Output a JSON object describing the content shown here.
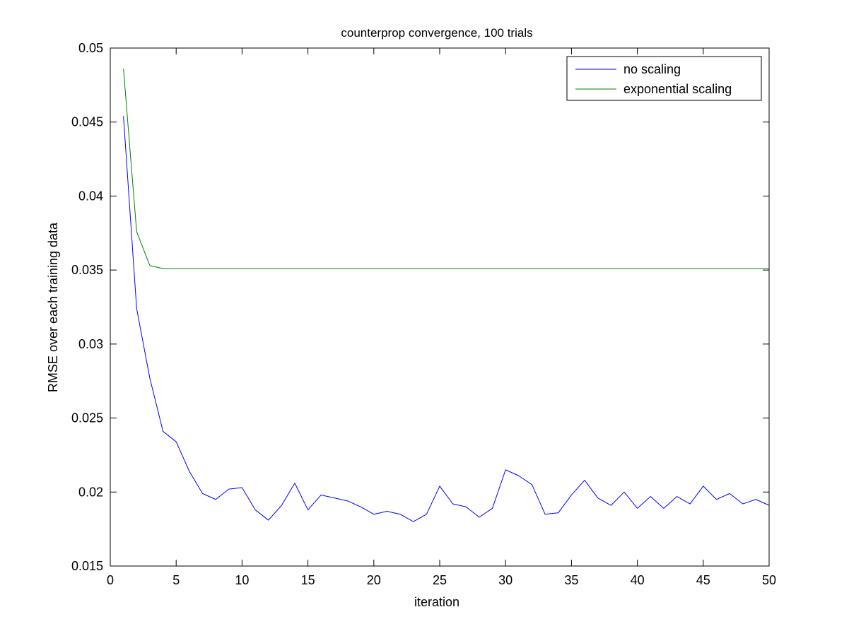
{
  "chart_data": {
    "type": "line",
    "title": "counterprop convergence, 100 trials",
    "xlabel": "iteration",
    "ylabel": "RMSE over each training data",
    "xlim": [
      0,
      50
    ],
    "ylim": [
      0.015,
      0.05
    ],
    "xticks": [
      0,
      5,
      10,
      15,
      20,
      25,
      30,
      35,
      40,
      45,
      50
    ],
    "xtick_labels": [
      "0",
      "5",
      "10",
      "15",
      "20",
      "25",
      "30",
      "35",
      "40",
      "45",
      "50"
    ],
    "yticks": [
      0.015,
      0.02,
      0.025,
      0.03,
      0.035,
      0.04,
      0.045,
      0.05
    ],
    "ytick_labels": [
      "0.015",
      "0.02",
      "0.025",
      "0.03",
      "0.035",
      "0.04",
      "0.045",
      "0.05"
    ],
    "grid": false,
    "legend_position": "top-right",
    "series": [
      {
        "name": "no scaling",
        "color": "#0000ff",
        "x": [
          1,
          2,
          3,
          4,
          5,
          6,
          7,
          8,
          9,
          10,
          11,
          12,
          13,
          14,
          15,
          16,
          17,
          18,
          19,
          20,
          21,
          22,
          23,
          24,
          25,
          26,
          27,
          28,
          29,
          30,
          31,
          32,
          33,
          34,
          35,
          36,
          37,
          38,
          39,
          40,
          41,
          42,
          43,
          44,
          45,
          46,
          47,
          48,
          49,
          50
        ],
        "y": [
          0.0454,
          0.0324,
          0.0277,
          0.0241,
          0.0234,
          0.0214,
          0.0199,
          0.0195,
          0.0202,
          0.0203,
          0.0188,
          0.0181,
          0.0191,
          0.0206,
          0.0188,
          0.0198,
          0.0196,
          0.0194,
          0.019,
          0.0185,
          0.0187,
          0.0185,
          0.018,
          0.0185,
          0.0204,
          0.0192,
          0.019,
          0.0183,
          0.0189,
          0.0215,
          0.0211,
          0.0205,
          0.0185,
          0.0186,
          0.0198,
          0.0208,
          0.0196,
          0.0191,
          0.02,
          0.0189,
          0.0197,
          0.0189,
          0.0197,
          0.0192,
          0.0204,
          0.0195,
          0.0199,
          0.0192,
          0.0195,
          0.0191
        ]
      },
      {
        "name": "exponential scaling",
        "color": "#008000",
        "x": [
          1,
          2,
          3,
          4,
          5,
          6,
          7,
          8,
          9,
          10,
          11,
          12,
          13,
          14,
          15,
          16,
          17,
          18,
          19,
          20,
          21,
          22,
          23,
          24,
          25,
          26,
          27,
          28,
          29,
          30,
          31,
          32,
          33,
          34,
          35,
          36,
          37,
          38,
          39,
          40,
          41,
          42,
          43,
          44,
          45,
          46,
          47,
          48,
          49,
          50
        ],
        "y": [
          0.0486,
          0.0376,
          0.0353,
          0.0351,
          0.0351,
          0.0351,
          0.0351,
          0.0351,
          0.0351,
          0.0351,
          0.0351,
          0.0351,
          0.0351,
          0.0351,
          0.0351,
          0.0351,
          0.0351,
          0.0351,
          0.0351,
          0.0351,
          0.0351,
          0.0351,
          0.0351,
          0.0351,
          0.0351,
          0.0351,
          0.0351,
          0.0351,
          0.0351,
          0.0351,
          0.0351,
          0.0351,
          0.0351,
          0.0351,
          0.0351,
          0.0351,
          0.0351,
          0.0351,
          0.0351,
          0.0351,
          0.0351,
          0.0351,
          0.0351,
          0.0351,
          0.0351,
          0.0351,
          0.0351,
          0.0351,
          0.0351,
          0.0351
        ]
      }
    ]
  }
}
